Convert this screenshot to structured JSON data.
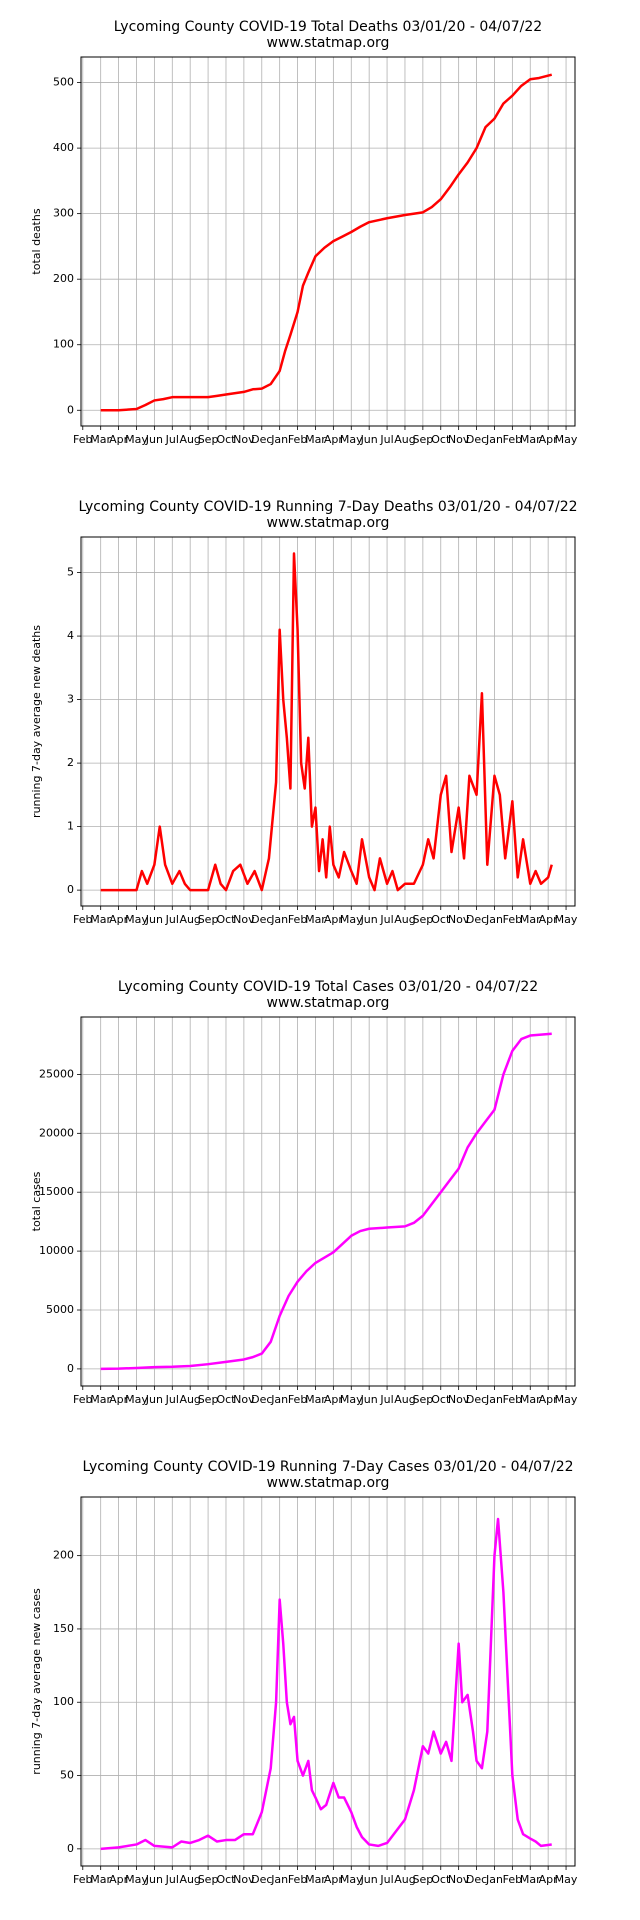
{
  "chart_data": [
    {
      "type": "line",
      "title": "Lycoming County COVID-19 Total Deaths 03/01/20 - 04/07/22",
      "subtitle": "www.statmap.org",
      "ylabel": "total deaths",
      "color": "#ff0000",
      "grid": true,
      "xlim": [
        -0.1,
        27.5
      ],
      "ylim": [
        -24,
        539
      ],
      "yticks": [
        0,
        100,
        200,
        300,
        400,
        500
      ],
      "xticks": [
        {
          "value": 0,
          "label": "Feb"
        },
        {
          "value": 1,
          "label": "Mar"
        },
        {
          "value": 2,
          "label": "Apr"
        },
        {
          "value": 3,
          "label": "May"
        },
        {
          "value": 4,
          "label": "Jun"
        },
        {
          "value": 5,
          "label": "Jul"
        },
        {
          "value": 6,
          "label": "Aug"
        },
        {
          "value": 7,
          "label": "Sep"
        },
        {
          "value": 8,
          "label": "Oct"
        },
        {
          "value": 9,
          "label": "Nov"
        },
        {
          "value": 10,
          "label": "Dec"
        },
        {
          "value": 11,
          "label": "Jan"
        },
        {
          "value": 12,
          "label": "Feb"
        },
        {
          "value": 13,
          "label": "Mar"
        },
        {
          "value": 14,
          "label": "Apr"
        },
        {
          "value": 15,
          "label": "May"
        },
        {
          "value": 16,
          "label": "Jun"
        },
        {
          "value": 17,
          "label": "Jul"
        },
        {
          "value": 18,
          "label": "Aug"
        },
        {
          "value": 19,
          "label": "Sep"
        },
        {
          "value": 20,
          "label": "Oct"
        },
        {
          "value": 21,
          "label": "Nov"
        },
        {
          "value": 22,
          "label": "Dec"
        },
        {
          "value": 23,
          "label": "Jan"
        },
        {
          "value": 24,
          "label": "Feb"
        },
        {
          "value": 25,
          "label": "Mar"
        },
        {
          "value": 26,
          "label": "Apr"
        },
        {
          "value": 27,
          "label": "May"
        }
      ],
      "x": [
        1,
        2,
        3,
        3.5,
        4,
        4.5,
        5,
        6,
        7,
        7.5,
        8,
        9,
        9.5,
        10,
        10.5,
        11,
        11.3,
        11.6,
        12,
        12.3,
        12.6,
        13,
        13.5,
        14,
        14.5,
        15,
        15.5,
        16,
        17,
        18,
        19,
        19.5,
        20,
        20.5,
        21,
        21.5,
        22,
        22.5,
        23,
        23.5,
        24,
        24.5,
        25,
        25.5,
        26.2
      ],
      "values": [
        0,
        0,
        2,
        8,
        15,
        17,
        20,
        20,
        20,
        22,
        24,
        28,
        32,
        33,
        40,
        60,
        90,
        115,
        150,
        190,
        210,
        235,
        248,
        258,
        265,
        272,
        280,
        287,
        293,
        298,
        302,
        310,
        322,
        340,
        360,
        378,
        400,
        432,
        445,
        468,
        480,
        495,
        505,
        507,
        512
      ]
    },
    {
      "type": "line",
      "title": "Lycoming County COVID-19 Running 7-Day Deaths 03/01/20 - 04/07/22",
      "subtitle": "www.statmap.org",
      "ylabel": "running 7-day average new deaths",
      "color": "#ff0000",
      "grid": true,
      "xlim": [
        -0.1,
        27.5
      ],
      "ylim": [
        -0.25,
        5.56
      ],
      "yticks": [
        0,
        1,
        2,
        3,
        4,
        5
      ],
      "xticks": [
        {
          "value": 0,
          "label": "Feb"
        },
        {
          "value": 1,
          "label": "Mar"
        },
        {
          "value": 2,
          "label": "Apr"
        },
        {
          "value": 3,
          "label": "May"
        },
        {
          "value": 4,
          "label": "Jun"
        },
        {
          "value": 5,
          "label": "Jul"
        },
        {
          "value": 6,
          "label": "Aug"
        },
        {
          "value": 7,
          "label": "Sep"
        },
        {
          "value": 8,
          "label": "Oct"
        },
        {
          "value": 9,
          "label": "Nov"
        },
        {
          "value": 10,
          "label": "Dec"
        },
        {
          "value": 11,
          "label": "Jan"
        },
        {
          "value": 12,
          "label": "Feb"
        },
        {
          "value": 13,
          "label": "Mar"
        },
        {
          "value": 14,
          "label": "Apr"
        },
        {
          "value": 15,
          "label": "May"
        },
        {
          "value": 16,
          "label": "Jun"
        },
        {
          "value": 17,
          "label": "Jul"
        },
        {
          "value": 18,
          "label": "Aug"
        },
        {
          "value": 19,
          "label": "Sep"
        },
        {
          "value": 20,
          "label": "Oct"
        },
        {
          "value": 21,
          "label": "Nov"
        },
        {
          "value": 22,
          "label": "Dec"
        },
        {
          "value": 23,
          "label": "Jan"
        },
        {
          "value": 24,
          "label": "Feb"
        },
        {
          "value": 25,
          "label": "Mar"
        },
        {
          "value": 26,
          "label": "Apr"
        },
        {
          "value": 27,
          "label": "May"
        }
      ],
      "x": [
        1,
        2,
        3,
        3.3,
        3.6,
        4,
        4.3,
        4.6,
        5,
        5.4,
        5.7,
        6,
        7,
        7.4,
        7.7,
        8,
        8.4,
        8.8,
        9.2,
        9.6,
        10,
        10.4,
        10.8,
        11,
        11.2,
        11.4,
        11.6,
        11.8,
        12,
        12.2,
        12.4,
        12.6,
        12.8,
        13,
        13.2,
        13.4,
        13.6,
        13.8,
        14,
        14.3,
        14.6,
        15,
        15.3,
        15.6,
        16,
        16.3,
        16.6,
        17,
        17.3,
        17.6,
        18,
        18.5,
        19,
        19.3,
        19.6,
        20,
        20.3,
        20.6,
        21,
        21.3,
        21.6,
        22,
        22.3,
        22.6,
        23,
        23.3,
        23.6,
        24,
        24.3,
        24.6,
        25,
        25.3,
        25.6,
        26,
        26.2
      ],
      "values": [
        0,
        0,
        0,
        0.3,
        0.1,
        0.4,
        1.0,
        0.4,
        0.1,
        0.3,
        0.1,
        0,
        0,
        0.4,
        0.1,
        0,
        0.3,
        0.4,
        0.1,
        0.3,
        0,
        0.5,
        1.7,
        4.1,
        3.0,
        2.4,
        1.6,
        5.3,
        4.1,
        2.0,
        1.6,
        2.4,
        1.0,
        1.3,
        0.3,
        0.8,
        0.2,
        1.0,
        0.4,
        0.2,
        0.6,
        0.3,
        0.1,
        0.8,
        0.2,
        0,
        0.5,
        0.1,
        0.3,
        0,
        0.1,
        0.1,
        0.4,
        0.8,
        0.5,
        1.5,
        1.8,
        0.6,
        1.3,
        0.5,
        1.8,
        1.5,
        3.1,
        0.4,
        1.8,
        1.5,
        0.5,
        1.4,
        0.2,
        0.8,
        0.1,
        0.3,
        0.1,
        0.2,
        0.4
      ]
    },
    {
      "type": "line",
      "title": "Lycoming County COVID-19 Total Cases 03/01/20 - 04/07/22",
      "subtitle": "www.statmap.org",
      "ylabel": "total cases",
      "color": "#ff00ff",
      "grid": true,
      "xlim": [
        -0.1,
        27.5
      ],
      "ylim": [
        -1452,
        29875
      ],
      "yticks": [
        0,
        5000,
        10000,
        15000,
        20000,
        25000
      ],
      "xticks": [
        {
          "value": 0,
          "label": "Feb"
        },
        {
          "value": 1,
          "label": "Mar"
        },
        {
          "value": 2,
          "label": "Apr"
        },
        {
          "value": 3,
          "label": "May"
        },
        {
          "value": 4,
          "label": "Jun"
        },
        {
          "value": 5,
          "label": "Jul"
        },
        {
          "value": 6,
          "label": "Aug"
        },
        {
          "value": 7,
          "label": "Sep"
        },
        {
          "value": 8,
          "label": "Oct"
        },
        {
          "value": 9,
          "label": "Nov"
        },
        {
          "value": 10,
          "label": "Dec"
        },
        {
          "value": 11,
          "label": "Jan"
        },
        {
          "value": 12,
          "label": "Feb"
        },
        {
          "value": 13,
          "label": "Mar"
        },
        {
          "value": 14,
          "label": "Apr"
        },
        {
          "value": 15,
          "label": "May"
        },
        {
          "value": 16,
          "label": "Jun"
        },
        {
          "value": 17,
          "label": "Jul"
        },
        {
          "value": 18,
          "label": "Aug"
        },
        {
          "value": 19,
          "label": "Sep"
        },
        {
          "value": 20,
          "label": "Oct"
        },
        {
          "value": 21,
          "label": "Nov"
        },
        {
          "value": 22,
          "label": "Dec"
        },
        {
          "value": 23,
          "label": "Jan"
        },
        {
          "value": 24,
          "label": "Feb"
        },
        {
          "value": 25,
          "label": "Mar"
        },
        {
          "value": 26,
          "label": "Apr"
        },
        {
          "value": 27,
          "label": "May"
        }
      ],
      "x": [
        1,
        2,
        3,
        4,
        5,
        6,
        7,
        8,
        9,
        9.5,
        10,
        10.5,
        11,
        11.5,
        12,
        12.5,
        13,
        14,
        14.5,
        15,
        15.5,
        16,
        17,
        18,
        18.5,
        19,
        19.5,
        20,
        20.5,
        21,
        21.5,
        22,
        22.5,
        23,
        23.5,
        24,
        24.5,
        25,
        26.2
      ],
      "values": [
        0,
        20,
        80,
        150,
        180,
        250,
        400,
        600,
        800,
        1000,
        1300,
        2300,
        4500,
        6200,
        7400,
        8300,
        9000,
        9900,
        10600,
        11300,
        11700,
        11900,
        12000,
        12100,
        12400,
        13000,
        14000,
        15000,
        16000,
        17000,
        18800,
        20000,
        21000,
        22000,
        25000,
        27000,
        28000,
        28300,
        28450
      ]
    },
    {
      "type": "line",
      "title": "Lycoming County COVID-19 Running 7-Day Cases 03/01/20 - 04/07/22",
      "subtitle": "www.statmap.org",
      "ylabel": "running 7-day average new cases",
      "color": "#ff00ff",
      "grid": true,
      "xlim": [
        -0.1,
        27.5
      ],
      "ylim": [
        -11.7,
        240
      ],
      "yticks": [
        0,
        50,
        100,
        150,
        200
      ],
      "xticks": [
        {
          "value": 0,
          "label": "Feb"
        },
        {
          "value": 1,
          "label": "Mar"
        },
        {
          "value": 2,
          "label": "Apr"
        },
        {
          "value": 3,
          "label": "May"
        },
        {
          "value": 4,
          "label": "Jun"
        },
        {
          "value": 5,
          "label": "Jul"
        },
        {
          "value": 6,
          "label": "Aug"
        },
        {
          "value": 7,
          "label": "Sep"
        },
        {
          "value": 8,
          "label": "Oct"
        },
        {
          "value": 9,
          "label": "Nov"
        },
        {
          "value": 10,
          "label": "Dec"
        },
        {
          "value": 11,
          "label": "Jan"
        },
        {
          "value": 12,
          "label": "Feb"
        },
        {
          "value": 13,
          "label": "Mar"
        },
        {
          "value": 14,
          "label": "Apr"
        },
        {
          "value": 15,
          "label": "May"
        },
        {
          "value": 16,
          "label": "Jun"
        },
        {
          "value": 17,
          "label": "Jul"
        },
        {
          "value": 18,
          "label": "Aug"
        },
        {
          "value": 19,
          "label": "Sep"
        },
        {
          "value": 20,
          "label": "Oct"
        },
        {
          "value": 21,
          "label": "Nov"
        },
        {
          "value": 22,
          "label": "Dec"
        },
        {
          "value": 23,
          "label": "Jan"
        },
        {
          "value": 24,
          "label": "Feb"
        },
        {
          "value": 25,
          "label": "Mar"
        },
        {
          "value": 26,
          "label": "Apr"
        },
        {
          "value": 27,
          "label": "May"
        }
      ],
      "x": [
        1,
        2,
        3,
        3.5,
        4,
        5,
        5.5,
        6,
        6.5,
        7,
        7.5,
        8,
        8.5,
        9,
        9.5,
        10,
        10.5,
        10.8,
        11,
        11.2,
        11.4,
        11.6,
        11.8,
        12,
        12.3,
        12.6,
        12.8,
        13,
        13.3,
        13.6,
        14,
        14.3,
        14.6,
        15,
        15.3,
        15.6,
        16,
        16.5,
        17,
        17.5,
        18,
        18.5,
        19,
        19.3,
        19.6,
        20,
        20.3,
        20.6,
        21,
        21.2,
        21.5,
        21.8,
        22,
        22.3,
        22.6,
        23,
        23.2,
        23.5,
        23.8,
        24,
        24.3,
        24.6,
        25,
        25.3,
        25.6,
        26.2
      ],
      "values": [
        0,
        1,
        3,
        6,
        2,
        1,
        5,
        4,
        6,
        9,
        5,
        6,
        6,
        10,
        10,
        25,
        55,
        100,
        170,
        140,
        100,
        85,
        90,
        60,
        50,
        60,
        40,
        35,
        27,
        30,
        45,
        35,
        35,
        25,
        15,
        8,
        3,
        2,
        4,
        12,
        20,
        40,
        70,
        65,
        80,
        65,
        73,
        60,
        140,
        100,
        105,
        80,
        60,
        55,
        80,
        200,
        225,
        175,
        100,
        50,
        20,
        10,
        7,
        5,
        2,
        3
      ]
    }
  ]
}
